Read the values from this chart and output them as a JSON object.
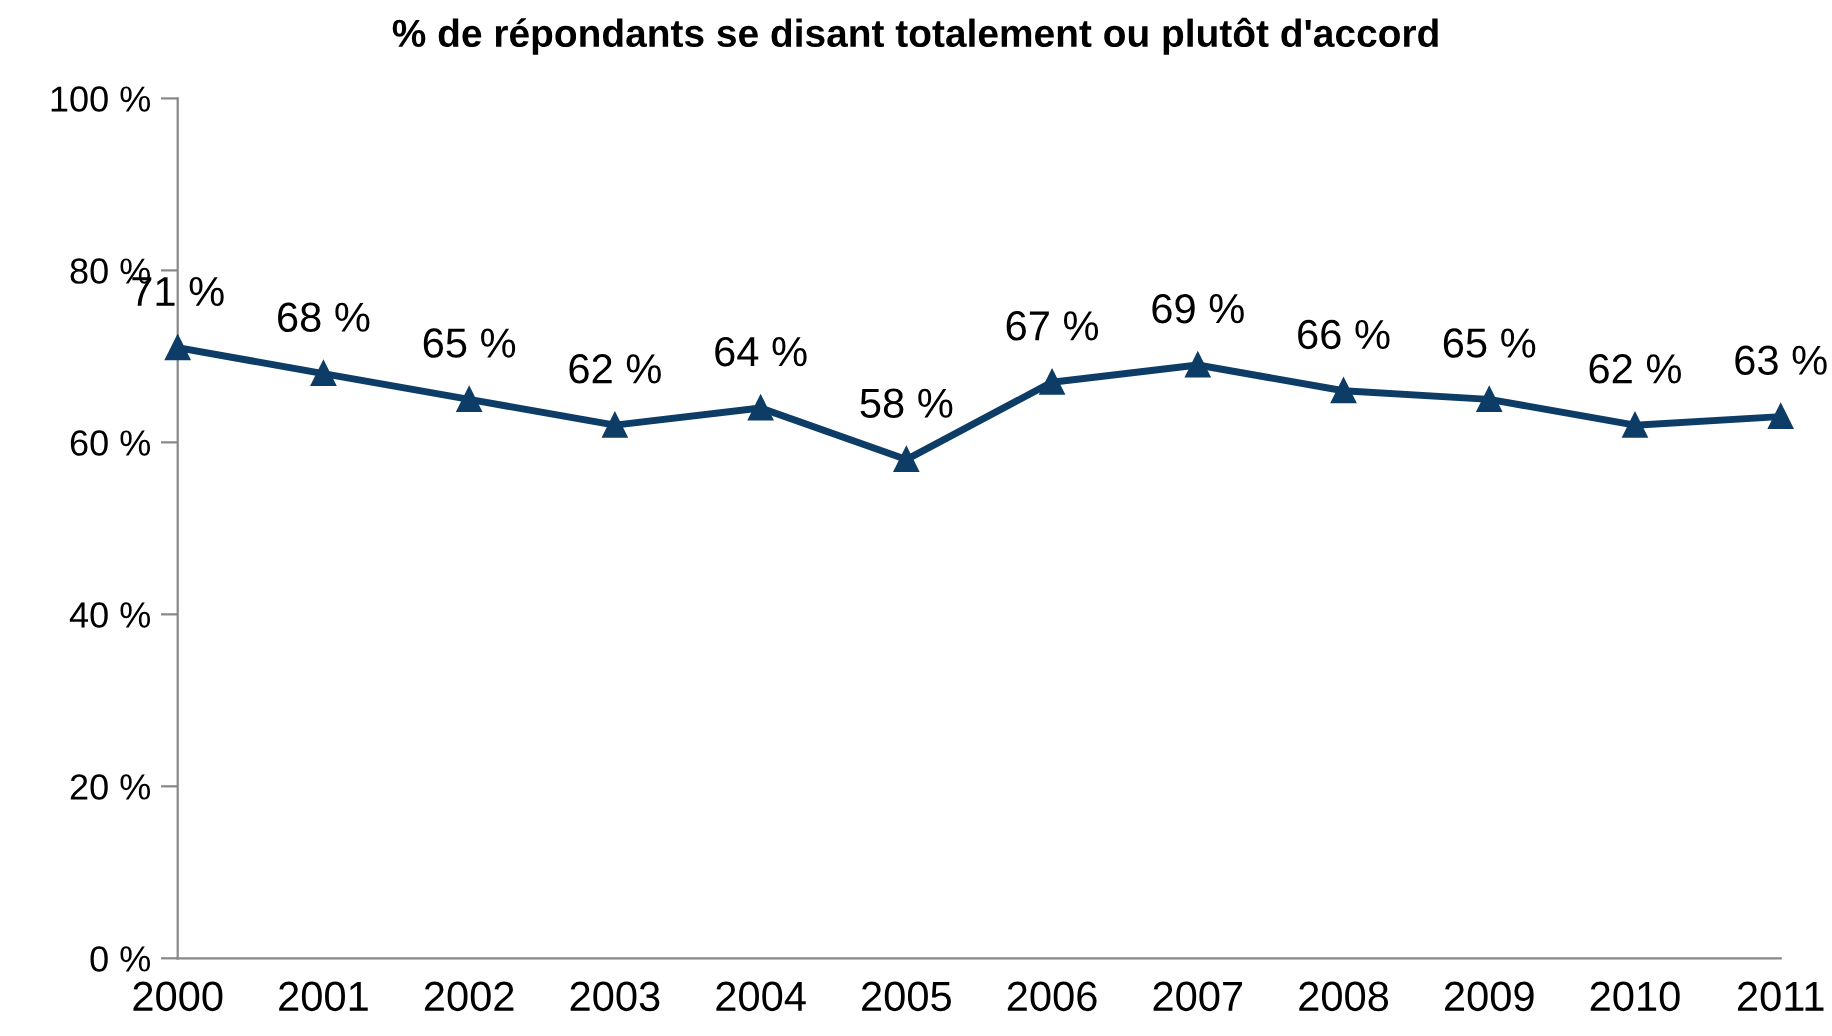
{
  "chart_data": {
    "type": "line",
    "title": "% de répondants se disant totalement ou plutôt d'accord",
    "categories": [
      "2000",
      "2001",
      "2002",
      "2003",
      "2004",
      "2005",
      "2006",
      "2007",
      "2008",
      "2009",
      "2010",
      "2011"
    ],
    "series": [
      {
        "color": "#0d3d66",
        "values": [
          71,
          68,
          65,
          62,
          64,
          58,
          67,
          69,
          66,
          65,
          62,
          63
        ],
        "value_labels": [
          "71 %",
          "68 %",
          "65 %",
          "62 %",
          "64 %",
          "58 %",
          "67 %",
          "69 %",
          "66 %",
          "65 %",
          "62 %",
          "63 %"
        ]
      }
    ],
    "ylim": [
      0,
      100
    ],
    "yticks": [
      {
        "value": 0,
        "label": "0 %"
      },
      {
        "value": 20,
        "label": "20 %"
      },
      {
        "value": 40,
        "label": "40 %"
      },
      {
        "value": 60,
        "label": "60 %"
      },
      {
        "value": 80,
        "label": "80 %"
      },
      {
        "value": 100,
        "label": "100 %"
      }
    ],
    "marker": "triangle",
    "line_style": "solid",
    "grid": false,
    "legend": false
  }
}
